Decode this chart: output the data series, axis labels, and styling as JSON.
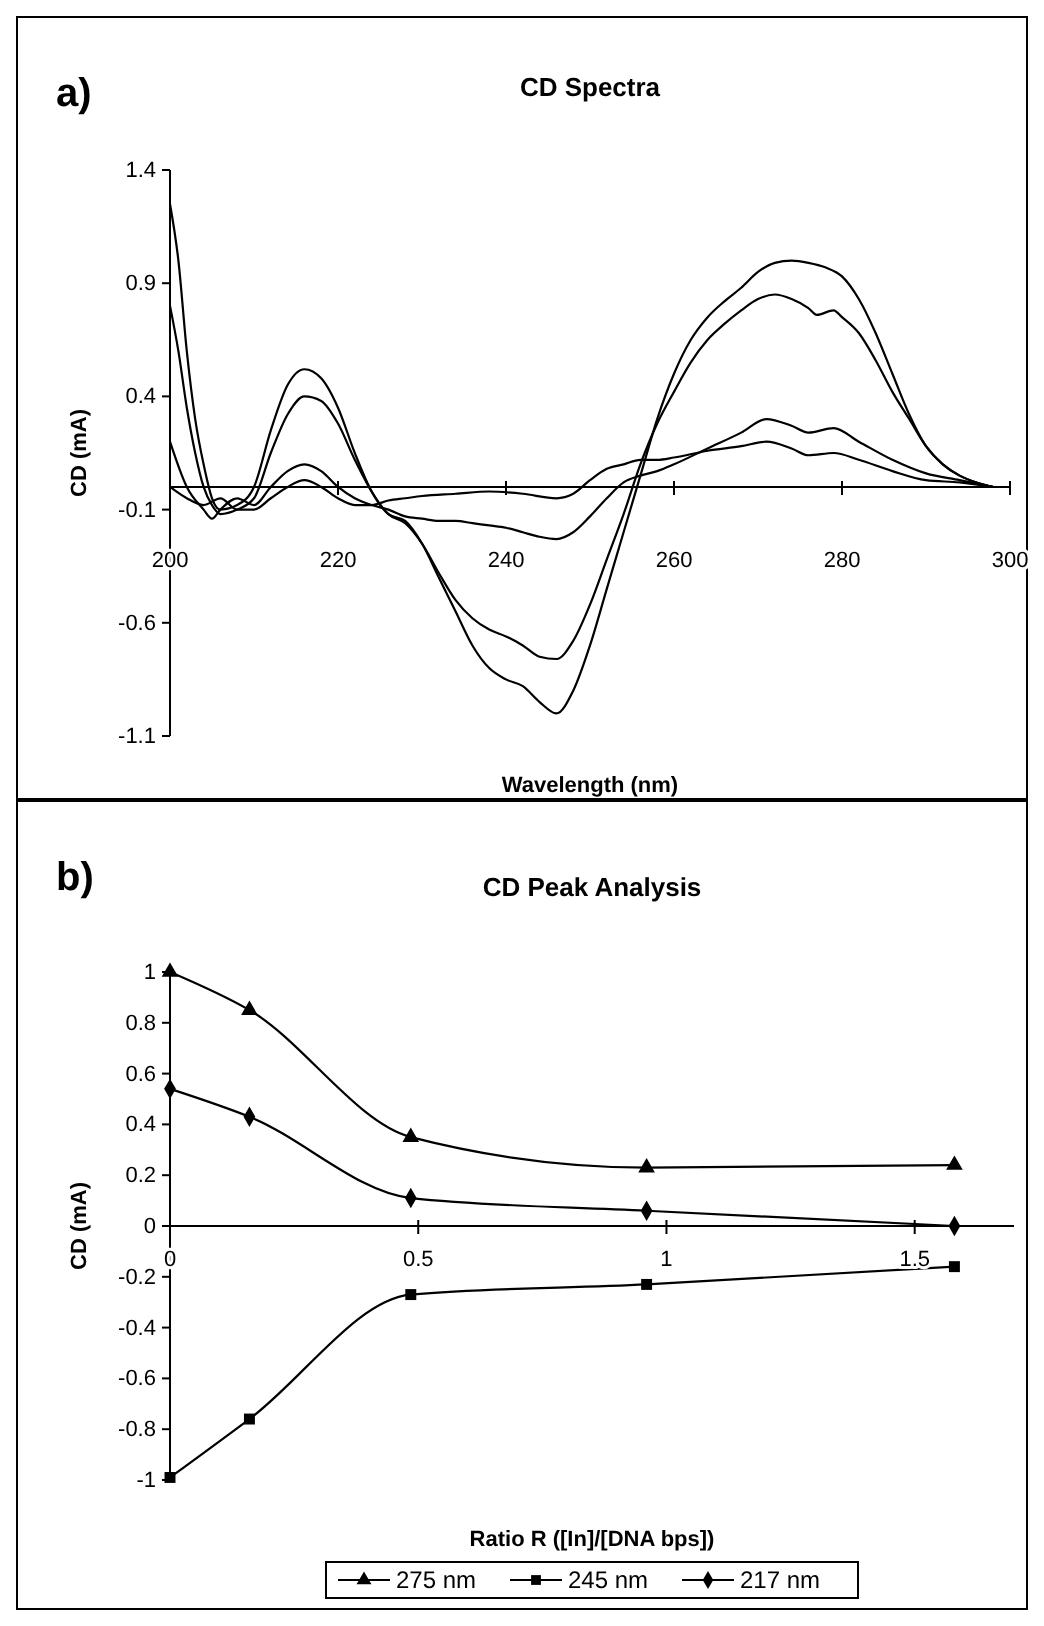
{
  "chart_data": [
    {
      "type": "line",
      "title": "CD Spectra",
      "xlabel": "Wavelength (nm)",
      "ylabel": "CD (mA)",
      "annotations": [
        "a)"
      ],
      "xlim": [
        200,
        300
      ],
      "xticks": [
        200,
        220,
        240,
        260,
        280,
        300
      ],
      "ylim": [
        -1.1,
        1.4
      ],
      "yticks": [
        -1.1,
        -0.6,
        -0.1,
        0.4,
        0.9,
        1.4
      ],
      "grid": false,
      "legend": false,
      "marker": "none",
      "line_style": "solid",
      "series": [
        {
          "color": "#000000",
          "x": [
            200,
            201,
            202,
            203,
            204,
            205,
            206,
            208,
            210,
            212,
            214,
            216,
            218,
            220,
            222,
            224,
            226,
            228,
            230,
            232,
            234,
            236,
            238,
            240,
            242,
            244,
            246,
            248,
            250,
            252,
            254,
            256,
            258,
            260,
            262,
            264,
            266,
            268,
            270,
            272,
            274,
            276,
            278,
            280,
            282,
            284,
            286,
            288,
            290,
            292,
            294,
            296,
            298
          ],
          "values": [
            1.25,
            1.0,
            0.6,
            0.3,
            0.1,
            -0.05,
            -0.1,
            -0.08,
            0.0,
            0.25,
            0.45,
            0.52,
            0.48,
            0.35,
            0.15,
            -0.02,
            -0.12,
            -0.15,
            -0.25,
            -0.4,
            -0.55,
            -0.7,
            -0.8,
            -0.85,
            -0.88,
            -0.95,
            -1.0,
            -0.9,
            -0.7,
            -0.45,
            -0.2,
            0.05,
            0.3,
            0.5,
            0.65,
            0.75,
            0.82,
            0.88,
            0.95,
            0.99,
            1.0,
            0.99,
            0.97,
            0.93,
            0.83,
            0.68,
            0.5,
            0.32,
            0.18,
            0.1,
            0.05,
            0.02,
            0.0
          ]
        },
        {
          "color": "#000000",
          "x": [
            200,
            201,
            202,
            203,
            204,
            205,
            206,
            208,
            210,
            212,
            214,
            216,
            218,
            220,
            222,
            224,
            226,
            228,
            230,
            232,
            234,
            236,
            238,
            240,
            242,
            244,
            246,
            248,
            250,
            252,
            254,
            256,
            258,
            260,
            262,
            264,
            266,
            268,
            270,
            272,
            274,
            276,
            277,
            279,
            280,
            282,
            284,
            286,
            288,
            290,
            292,
            294,
            296,
            298
          ],
          "values": [
            0.8,
            0.6,
            0.35,
            0.15,
            0.0,
            -0.08,
            -0.12,
            -0.1,
            -0.05,
            0.15,
            0.32,
            0.4,
            0.38,
            0.28,
            0.12,
            -0.02,
            -0.12,
            -0.16,
            -0.25,
            -0.38,
            -0.5,
            -0.58,
            -0.63,
            -0.66,
            -0.7,
            -0.75,
            -0.76,
            -0.68,
            -0.52,
            -0.32,
            -0.12,
            0.1,
            0.28,
            0.42,
            0.55,
            0.65,
            0.72,
            0.78,
            0.83,
            0.85,
            0.83,
            0.79,
            0.76,
            0.78,
            0.75,
            0.68,
            0.56,
            0.42,
            0.3,
            0.18,
            0.1,
            0.05,
            0.02,
            0.0
          ]
        },
        {
          "color": "#000000",
          "x": [
            200,
            202,
            204,
            205,
            206,
            208,
            210,
            212,
            214,
            216,
            218,
            220,
            222,
            224,
            226,
            228,
            230,
            232,
            234,
            236,
            238,
            240,
            242,
            244,
            246,
            248,
            250,
            252,
            254,
            256,
            258,
            260,
            264,
            268,
            271,
            274,
            276,
            279,
            282,
            286,
            290,
            294,
            298
          ],
          "values": [
            0.2,
            0.0,
            -0.1,
            -0.14,
            -0.1,
            -0.05,
            -0.08,
            0.0,
            0.07,
            0.1,
            0.07,
            0.0,
            -0.05,
            -0.08,
            -0.1,
            -0.13,
            -0.14,
            -0.15,
            -0.15,
            -0.16,
            -0.17,
            -0.18,
            -0.2,
            -0.22,
            -0.23,
            -0.2,
            -0.13,
            -0.05,
            0.02,
            0.05,
            0.07,
            0.1,
            0.17,
            0.24,
            0.3,
            0.27,
            0.24,
            0.26,
            0.2,
            0.12,
            0.06,
            0.03,
            0.0
          ]
        },
        {
          "color": "#000000",
          "x": [
            200,
            202,
            204,
            206,
            208,
            210,
            212,
            214,
            216,
            218,
            220,
            222,
            224,
            226,
            228,
            230,
            234,
            238,
            242,
            246,
            248,
            250,
            252,
            254,
            256,
            258,
            260,
            264,
            268,
            271,
            274,
            276,
            279,
            282,
            286,
            290,
            294,
            298
          ],
          "values": [
            0.0,
            -0.05,
            -0.08,
            -0.05,
            -0.1,
            -0.1,
            -0.05,
            0.0,
            0.03,
            0.0,
            -0.05,
            -0.08,
            -0.08,
            -0.06,
            -0.05,
            -0.04,
            -0.03,
            -0.02,
            -0.03,
            -0.05,
            -0.03,
            0.03,
            0.08,
            0.1,
            0.12,
            0.12,
            0.13,
            0.16,
            0.18,
            0.2,
            0.17,
            0.14,
            0.15,
            0.12,
            0.07,
            0.03,
            0.02,
            0.0
          ]
        }
      ]
    },
    {
      "type": "line",
      "title": "CD Peak Analysis",
      "xlabel": "Ratio R ([In]/[DNA bps])",
      "ylabel": "CD (mA)",
      "annotations": [
        "b)"
      ],
      "xlim": [
        0,
        1.7
      ],
      "xticks": [
        0,
        0.5,
        1,
        1.5
      ],
      "ylim": [
        -1,
        1
      ],
      "yticks": [
        -1,
        -0.8,
        -0.6,
        -0.4,
        -0.2,
        0,
        0.2,
        0.4,
        0.6,
        0.8,
        1
      ],
      "grid": false,
      "legend": "bottom",
      "line_style": "solid",
      "x": [
        0,
        0.16,
        0.485,
        0.96,
        1.58
      ],
      "series": [
        {
          "name": "275 nm",
          "color": "#000000",
          "marker": "triangle",
          "values": [
            1.0,
            0.85,
            0.35,
            0.23,
            0.24
          ]
        },
        {
          "name": "245 nm",
          "color": "#000000",
          "marker": "square",
          "values": [
            -0.99,
            -0.76,
            -0.27,
            -0.23,
            -0.16
          ]
        },
        {
          "name": "217 nm",
          "color": "#000000",
          "marker": "diamond",
          "values": [
            0.54,
            0.43,
            0.11,
            0.06,
            0.0
          ]
        }
      ]
    }
  ]
}
